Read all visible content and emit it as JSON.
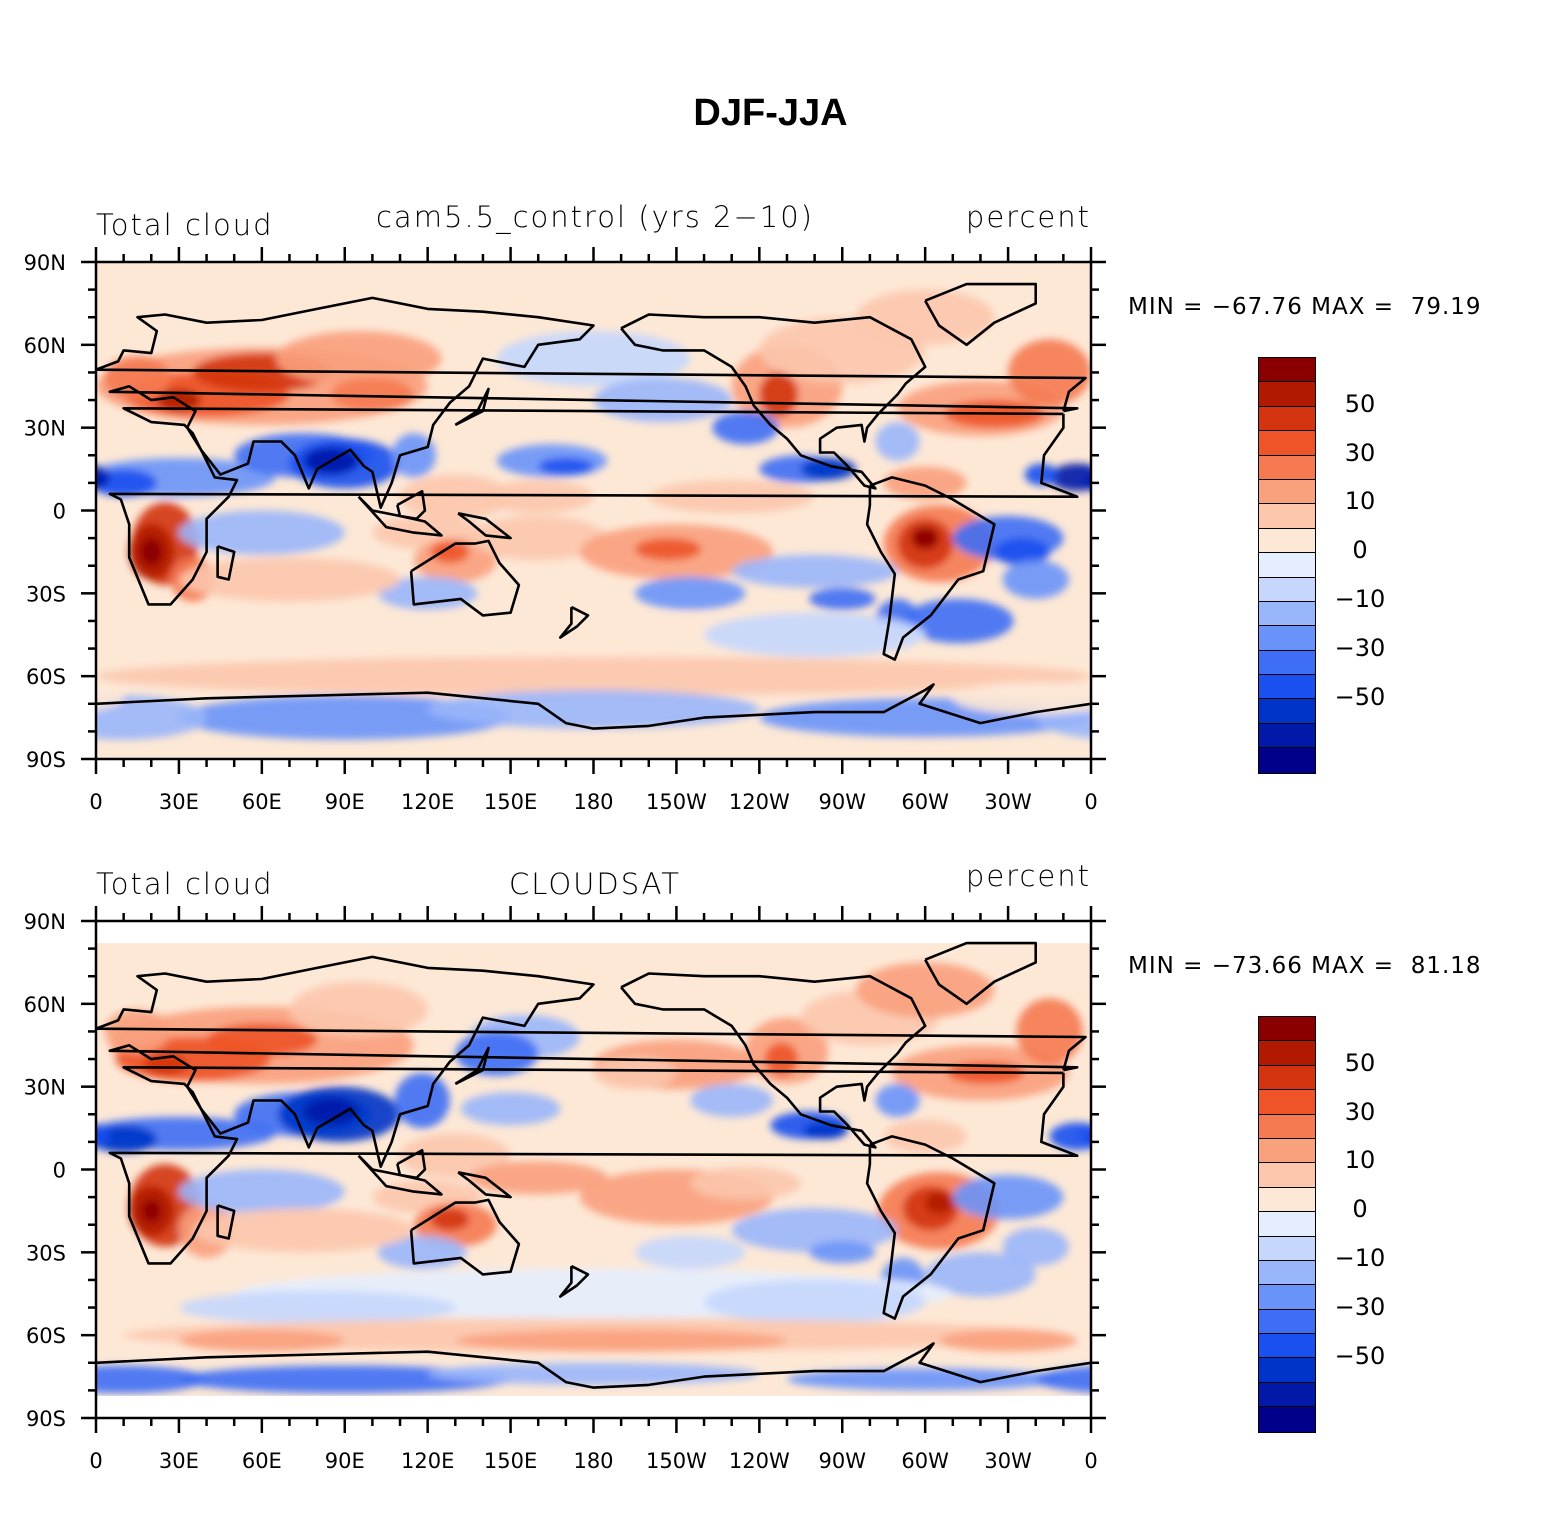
{
  "figure_title": "DJF-JJA",
  "palette": [
    "#00008a",
    "#0019a8",
    "#0034c8",
    "#1a4ff0",
    "#3e6ef5",
    "#6a93fa",
    "#9ab6fb",
    "#c5d7fd",
    "#e4eefe",
    "#fde8d6",
    "#fcc7ad",
    "#f9a07d",
    "#f57a51",
    "#ee5428",
    "#d3330e",
    "#b11a00",
    "#8a0000"
  ],
  "colorbar_levels": [
    "-60",
    "-50",
    "-40",
    "-30",
    "-20",
    "-10",
    "-5",
    "0",
    "5",
    "10",
    "20",
    "30",
    "40",
    "50",
    "60"
  ],
  "colorbar_labels": [
    "50",
    "30",
    "10",
    "0",
    "−10",
    "−30",
    "−50"
  ],
  "lat_ticks": [
    "90N",
    "60N",
    "30N",
    "0",
    "30S",
    "60S",
    "90S"
  ],
  "lon_ticks": [
    "0",
    "30E",
    "60E",
    "90E",
    "120E",
    "150E",
    "180",
    "150W",
    "120W",
    "90W",
    "60W",
    "30W",
    "0"
  ],
  "panels": [
    {
      "left_label": "Total cloud",
      "center_label": "cam5.5_control (yrs 2−10)",
      "right_label": "percent",
      "min_max": "MIN = −67.76 MAX =  79.19"
    },
    {
      "left_label": "Total cloud",
      "center_label": "CLOUDSAT",
      "right_label": "percent",
      "min_max": "MIN = −73.66 MAX =  81.18"
    }
  ]
}
